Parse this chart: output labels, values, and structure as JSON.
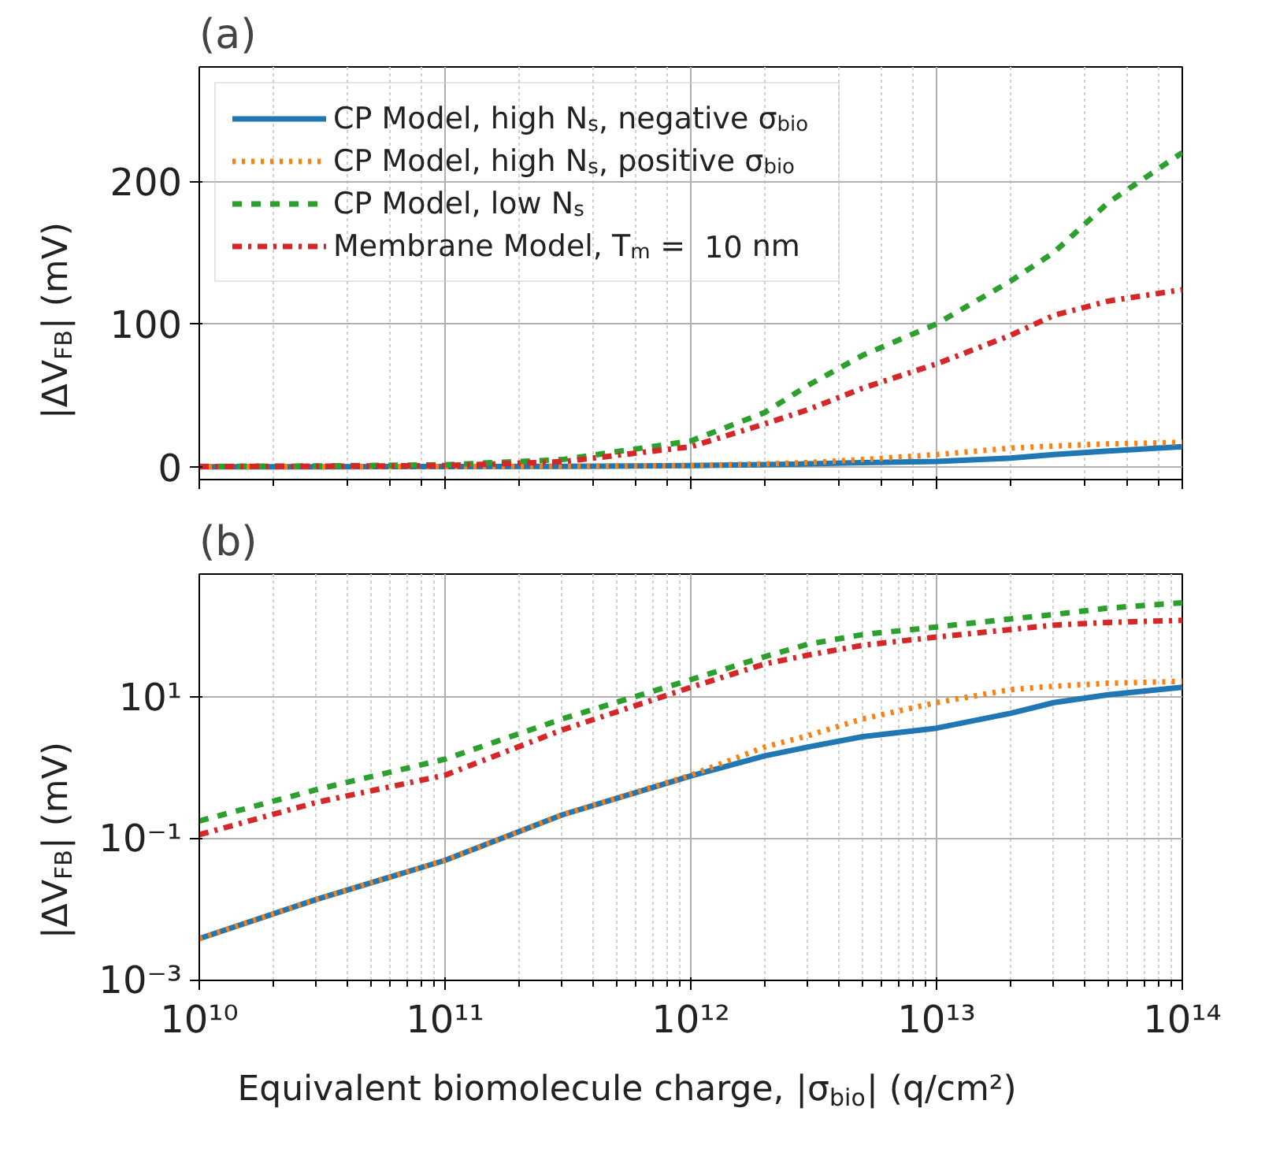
{
  "chart_data": [
    {
      "type": "line",
      "title": "(a)",
      "ylabel": "|ΔV$_{FB}$| (mV)",
      "log": "x",
      "grid": true,
      "legend": "top left",
      "tick_labels": "y",
      "x": [
        10000000000.0,
        30000000000.0,
        100000000000.0,
        300000000000.0,
        1000000000000.0,
        2000000000000.0,
        3000000000000.0,
        5000000000000.0,
        10000000000000.0,
        20000000000000.0,
        30000000000000.0,
        50000000000000.0,
        100000000000000.0
      ],
      "xlim": [
        10000000000.0,
        100000000000000.0
      ],
      "ylim": [
        -9,
        280
      ],
      "yticks": [
        0,
        100,
        200
      ],
      "series": [
        {
          "name": "CP Model, high N$_{s}$, negative σ$_{bio}$",
          "color": "#1f77b4",
          "line_style": "solid",
          "values": [
            0.0039,
            0.014,
            0.05,
            0.22,
            0.78,
            1.5,
            2.0,
            2.8,
            3.7,
            6,
            8.5,
            11,
            14
          ]
        },
        {
          "name": "CP Model, high N$_{s}$, positive σ$_{bio}$",
          "color": "#ff7f0e",
          "line_style": "dotted",
          "values": [
            0.0039,
            0.014,
            0.05,
            0.22,
            0.8,
            2.0,
            2.9,
            5,
            8.5,
            13,
            14.5,
            16,
            17
          ]
        },
        {
          "name": "CP Model, low N$_{s}$",
          "color": "#2ca02c",
          "line_style": "dashed",
          "values": [
            0.18,
            0.5,
            1.35,
            5,
            18,
            38,
            57,
            78,
            100,
            130,
            150,
            185,
            220
          ]
        },
        {
          "name": "Membrane Model, T$_{m}$ =  10 nm",
          "color": "#d62728",
          "line_style": "dashdot",
          "values": [
            0.115,
            0.33,
            0.8,
            3.5,
            14,
            30,
            40,
            55,
            72,
            92,
            106,
            116,
            124
          ]
        }
      ]
    },
    {
      "type": "line",
      "title": "(b)",
      "xlabel": "Equivalent biomolecule charge, |σ$_{bio}$| (q/cm²)",
      "ylabel": "|ΔV$_{FB}$| (mV)",
      "log": "xy",
      "grid": true,
      "x": [
        10000000000.0,
        30000000000.0,
        100000000000.0,
        300000000000.0,
        1000000000000.0,
        2000000000000.0,
        3000000000000.0,
        5000000000000.0,
        10000000000000.0,
        20000000000000.0,
        30000000000000.0,
        50000000000000.0,
        100000000000000.0
      ],
      "xlim": [
        10000000000.0,
        100000000000000.0
      ],
      "ylim": [
        0.001,
        560
      ],
      "xticks": [
        {
          "value": 10000000000.0,
          "label": "10¹⁰"
        },
        {
          "value": 100000000000.0,
          "label": "10¹¹"
        },
        {
          "value": 1000000000000.0,
          "label": "10¹²"
        },
        {
          "value": 10000000000000.0,
          "label": "10¹³"
        },
        {
          "value": 100000000000000.0,
          "label": "10¹⁴"
        }
      ],
      "yticks": [
        {
          "value": 0.001,
          "label": "10⁻³"
        },
        {
          "value": 0.1,
          "label": "10⁻¹"
        },
        {
          "value": 10,
          "label": "10¹"
        }
      ],
      "series": [
        {
          "color": "#1f77b4",
          "line_style": "solid",
          "values": [
            0.0039,
            0.014,
            0.05,
            0.22,
            0.78,
            1.5,
            2.0,
            2.8,
            3.7,
            6,
            8.5,
            11,
            14
          ]
        },
        {
          "color": "#ff7f0e",
          "line_style": "dotted",
          "values": [
            0.0039,
            0.014,
            0.05,
            0.22,
            0.8,
            2.0,
            2.9,
            5,
            8.5,
            13,
            14.5,
            16,
            17
          ]
        },
        {
          "color": "#2ca02c",
          "line_style": "dashed",
          "values": [
            0.18,
            0.5,
            1.35,
            5,
            18,
            38,
            57,
            78,
            100,
            130,
            150,
            185,
            220
          ]
        },
        {
          "color": "#d62728",
          "line_style": "dashdot",
          "values": [
            0.115,
            0.33,
            0.8,
            3.5,
            14,
            30,
            40,
            55,
            72,
            92,
            106,
            116,
            124
          ]
        }
      ]
    }
  ]
}
